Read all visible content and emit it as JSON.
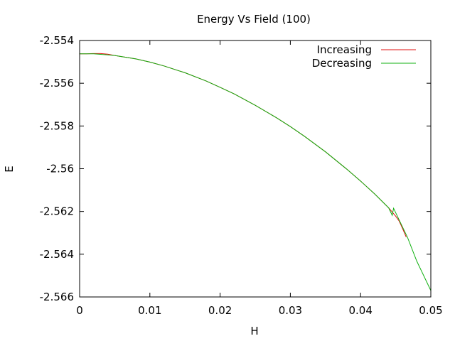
{
  "chart_data": {
    "type": "line",
    "title": "Energy Vs Field (100)",
    "xlabel": "H",
    "ylabel": "E",
    "xlim": [
      0,
      0.05
    ],
    "ylim": [
      -2.566,
      -2.554
    ],
    "xticks": [
      0,
      0.01,
      0.02,
      0.03,
      0.04,
      0.05
    ],
    "xtick_labels": [
      "0",
      "0.01",
      "0.02",
      "0.03",
      "0.04",
      "0.05"
    ],
    "yticks": [
      -2.566,
      -2.564,
      -2.562,
      -2.56,
      -2.558,
      -2.556,
      -2.554
    ],
    "ytick_labels": [
      "-2.566",
      "-2.564",
      "-2.562",
      "-2.56",
      "-2.558",
      "-2.556",
      "-2.554"
    ],
    "grid": false,
    "legend_position": "top-right",
    "series": [
      {
        "name": "Increasing",
        "color": "#e01010",
        "x": [
          0,
          0.001,
          0.002,
          0.003,
          0.004,
          0.005,
          0.008,
          0.01,
          0.012,
          0.015,
          0.018,
          0.02,
          0.022,
          0.025,
          0.028,
          0.03,
          0.032,
          0.035,
          0.038,
          0.04,
          0.042,
          0.044,
          0.045,
          0.0455,
          0.046,
          0.0465
        ],
        "y": [
          -2.55462,
          -2.55462,
          -2.55461,
          -2.55461,
          -2.55464,
          -2.5547,
          -2.55486,
          -2.55501,
          -2.55519,
          -2.55551,
          -2.55589,
          -2.55619,
          -2.5565,
          -2.55703,
          -2.55761,
          -2.55803,
          -2.55848,
          -2.55921,
          -2.56001,
          -2.56058,
          -2.56118,
          -2.56183,
          -2.56222,
          -2.56245,
          -2.56282,
          -2.5632
        ]
      },
      {
        "name": "Decreasing",
        "color": "#10b010",
        "x": [
          0,
          0.002,
          0.004,
          0.005,
          0.008,
          0.01,
          0.012,
          0.015,
          0.018,
          0.02,
          0.022,
          0.025,
          0.028,
          0.03,
          0.032,
          0.035,
          0.038,
          0.04,
          0.042,
          0.044,
          0.0445,
          0.0447,
          0.046,
          0.0467,
          0.048,
          0.05
        ],
        "y": [
          -2.55462,
          -2.55462,
          -2.55467,
          -2.5547,
          -2.55486,
          -2.55501,
          -2.55519,
          -2.55551,
          -2.55589,
          -2.55619,
          -2.5565,
          -2.55703,
          -2.55761,
          -2.55803,
          -2.55848,
          -2.55921,
          -2.56001,
          -2.56058,
          -2.56118,
          -2.56183,
          -2.56218,
          -2.56185,
          -2.56275,
          -2.56323,
          -2.56432,
          -2.5657
        ]
      }
    ]
  }
}
